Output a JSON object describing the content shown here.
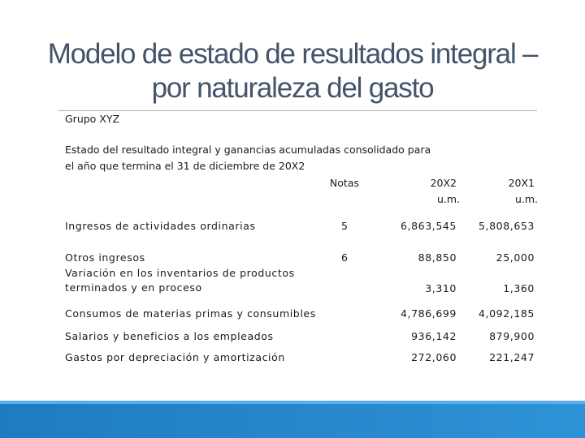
{
  "title": {
    "line1": "Modelo de estado de resultados integral –",
    "line2": "por naturaleza del gasto"
  },
  "company": "Grupo XYZ",
  "statement": {
    "line1": "Estado del resultado integral y ganancias acumuladas consolidado para",
    "line2": "el año que termina el 31 de diciembre de 20X2"
  },
  "headers": {
    "notes": "Notas",
    "year1": "20X2",
    "year1_unit": "u.m.",
    "year2": "20X1",
    "year2_unit": "u.m."
  },
  "rows": [
    {
      "label": "Ingresos de actividades ordinarias",
      "note": "5",
      "v1": "6,863,545",
      "v2": "5,808,653"
    },
    {
      "label": "Otros ingresos",
      "note": "6",
      "v1": "88,850",
      "v2": "25,000"
    },
    {
      "label": "Variación en los inventarios de productos",
      "label2": "terminados y en proceso",
      "note": "",
      "v1": "3,310",
      "v2": "1,360"
    },
    {
      "label": "Consumos de materias primas y consumibles",
      "note": "",
      "v1": "4,786,699",
      "v2": "4,092,185"
    },
    {
      "label": "Salarios y beneficios  a los empleados",
      "note": "",
      "v1": "936,142",
      "v2": "879,900"
    },
    {
      "label": "Gastos por depreciación y amortización",
      "note": "",
      "v1": "272,060",
      "v2": "221,247"
    }
  ],
  "colors": {
    "title": "#44546a",
    "footer_band": "#1f7bc0"
  }
}
